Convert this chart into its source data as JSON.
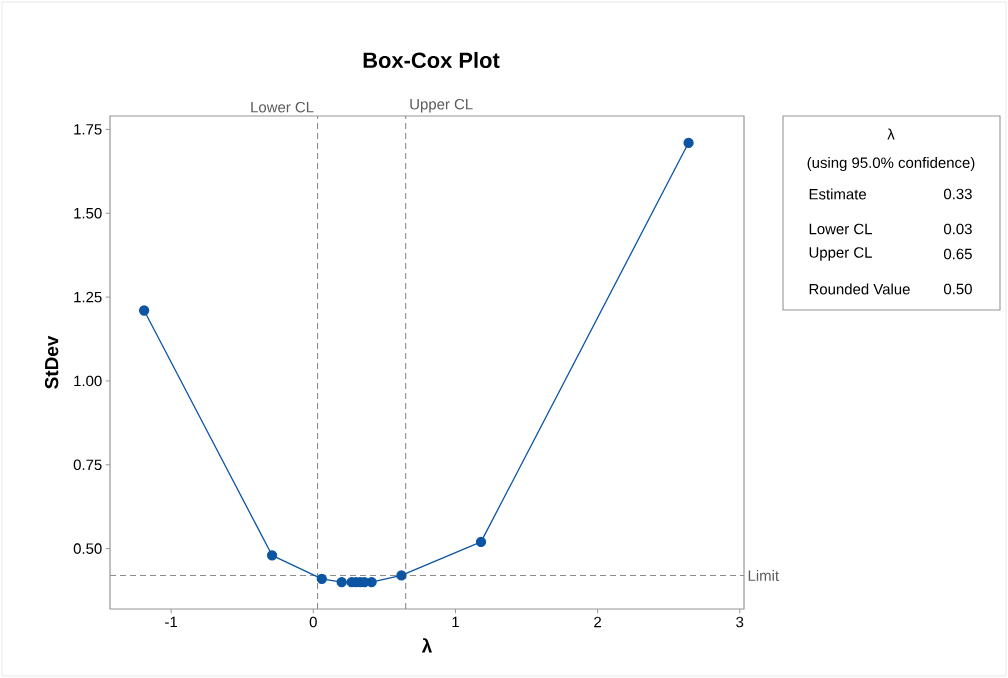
{
  "chart_data": {
    "type": "line",
    "title": "Box-Cox Plot",
    "xlabel": "λ",
    "ylabel": "StDev",
    "x": [
      -1.19,
      -0.29,
      0.06,
      0.2,
      0.27,
      0.3,
      0.33,
      0.36,
      0.41,
      0.62,
      1.18,
      2.64
    ],
    "series": [
      {
        "color": "#0b55a3",
        "values": [
          1.21,
          0.48,
          0.41,
          0.4,
          0.4,
          0.4,
          0.4,
          0.4,
          0.4,
          0.42,
          0.52,
          1.71
        ]
      }
    ],
    "marker": "circle",
    "line_style": "solid",
    "grid": false,
    "xlim": [
      -1.43,
      3.03
    ],
    "ylim": [
      0.32,
      1.79
    ],
    "xticks": [
      -1,
      0,
      1,
      2,
      3
    ],
    "yticks": [
      {
        "value": 0.5,
        "label": "0.50"
      },
      0.75,
      {
        "value": 1.0,
        "label": "1.00"
      },
      1.25,
      {
        "value": 1.5,
        "label": "1.50"
      },
      1.75
    ],
    "ref_lines": [
      {
        "axis": "x",
        "value": 0.03,
        "label": "Lower CL",
        "color": "#8c8c8c",
        "line_style": "dashed"
      },
      {
        "axis": "x",
        "value": 0.65,
        "label": "Upper CL",
        "color": "#8c8c8c",
        "line_style": "dashed"
      },
      {
        "axis": "y",
        "value": 0.42,
        "label": "Limit",
        "color": "#8c8c8c",
        "line_style": "dashed"
      }
    ],
    "annotations": [
      "λ",
      "(using 95.0% confidence)",
      "Estimate",
      "0.33",
      "Lower CL",
      "0.03",
      "Upper CL",
      "0.65",
      "Rounded Value",
      "0.50"
    ]
  }
}
